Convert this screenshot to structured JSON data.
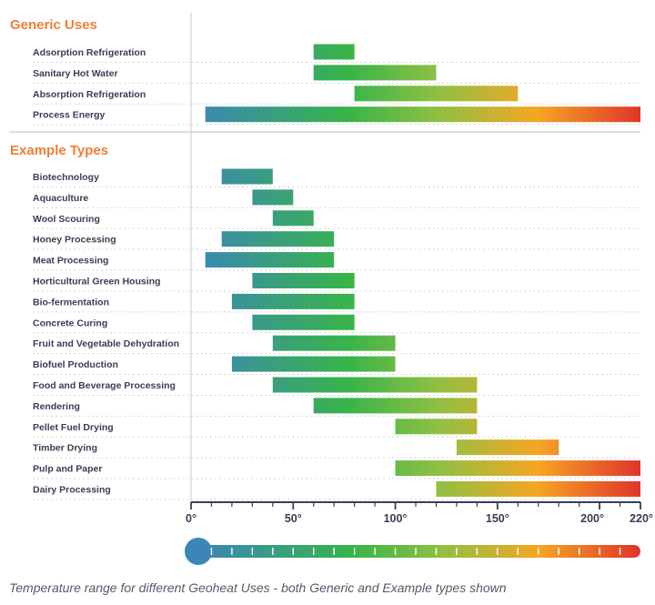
{
  "chart_data": {
    "type": "bar",
    "subtype": "floating-range",
    "unit": "°",
    "xlim": [
      0,
      220
    ],
    "x_ticks": [
      0,
      50,
      100,
      150,
      200,
      220
    ],
    "x_tick_labels": [
      "0°",
      "50°",
      "100°",
      "150°",
      "200°",
      "220°"
    ],
    "grid": "horizontal dotted row separators",
    "color_scale": {
      "low": "#3b86b7",
      "mid": "#38b449",
      "high": "#f5a623",
      "max": "#e0342a"
    },
    "sections": [
      {
        "title": "Generic Uses",
        "rows": [
          {
            "label": "Adsorption Refrigeration",
            "start": 60,
            "end": 80
          },
          {
            "label": "Sanitary Hot Water",
            "start": 60,
            "end": 120
          },
          {
            "label": "Absorption Refrigeration",
            "start": 80,
            "end": 160
          },
          {
            "label": "Process Energy",
            "start": 7,
            "end": 220
          }
        ]
      },
      {
        "title": "Example Types",
        "rows": [
          {
            "label": "Biotechnology",
            "start": 15,
            "end": 40
          },
          {
            "label": "Aquaculture",
            "start": 30,
            "end": 50
          },
          {
            "label": "Wool Scouring",
            "start": 40,
            "end": 60
          },
          {
            "label": "Honey Processing",
            "start": 15,
            "end": 70
          },
          {
            "label": "Meat Processing",
            "start": 7,
            "end": 70
          },
          {
            "label": "Horticultural Green Housing",
            "start": 30,
            "end": 80
          },
          {
            "label": "Bio-fermentation",
            "start": 20,
            "end": 80
          },
          {
            "label": "Concrete Curing",
            "start": 30,
            "end": 80
          },
          {
            "label": "Fruit and Vegetable Dehydration",
            "start": 40,
            "end": 100
          },
          {
            "label": "Biofuel Production",
            "start": 20,
            "end": 100
          },
          {
            "label": "Food and Beverage Processing",
            "start": 40,
            "end": 140
          },
          {
            "label": "Rendering",
            "start": 60,
            "end": 140
          },
          {
            "label": "Pellet Fuel Drying",
            "start": 100,
            "end": 140
          },
          {
            "label": "Timber Drying",
            "start": 130,
            "end": 180
          },
          {
            "label": "Pulp and Paper",
            "start": 100,
            "end": 220
          },
          {
            "label": "Dairy Processing",
            "start": 120,
            "end": 220
          }
        ]
      }
    ]
  },
  "caption": "Temperature range for different Geoheat Uses - both Generic and Example types shown"
}
